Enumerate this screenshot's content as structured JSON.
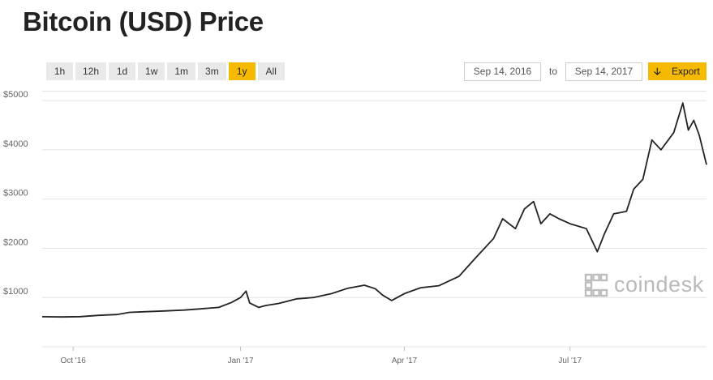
{
  "title": "Bitcoin (USD) Price",
  "ranges": [
    {
      "label": "1h",
      "active": false
    },
    {
      "label": "12h",
      "active": false
    },
    {
      "label": "1d",
      "active": false
    },
    {
      "label": "1w",
      "active": false
    },
    {
      "label": "1m",
      "active": false
    },
    {
      "label": "3m",
      "active": false
    },
    {
      "label": "1y",
      "active": true
    },
    {
      "label": "All",
      "active": false
    }
  ],
  "date_from": "Sep 14, 2016",
  "to_label": "to",
  "date_to": "Sep 14, 2017",
  "export_label": "Export",
  "export_icon": "download-arrow-icon",
  "watermark": "coindesk",
  "colors": {
    "accent": "#f5b900",
    "line": "#222222",
    "grid": "#e4e4e4"
  },
  "chart_data": {
    "type": "line",
    "title": "",
    "xlabel": "",
    "ylabel": "",
    "x_range": [
      "2016-09-14",
      "2017-09-14"
    ],
    "ylim": [
      0,
      5200
    ],
    "y_ticks": [
      1000,
      2000,
      3000,
      4000,
      5000
    ],
    "y_tick_labels": [
      "$1000",
      "$2000",
      "$3000",
      "$4000",
      "$5000"
    ],
    "x_ticks": [
      {
        "date": "2016-10-01",
        "label": "Oct '16"
      },
      {
        "date": "2017-01-01",
        "label": "Jan '17"
      },
      {
        "date": "2017-04-01",
        "label": "Apr '17"
      },
      {
        "date": "2017-07-01",
        "label": "Jul '17"
      }
    ],
    "grid": true,
    "series": [
      {
        "points": [
          [
            "2016-09-14",
            610
          ],
          [
            "2016-09-25",
            605
          ],
          [
            "2016-10-05",
            612
          ],
          [
            "2016-10-15",
            638
          ],
          [
            "2016-10-25",
            655
          ],
          [
            "2016-11-01",
            700
          ],
          [
            "2016-11-10",
            712
          ],
          [
            "2016-11-20",
            728
          ],
          [
            "2016-12-01",
            745
          ],
          [
            "2016-12-10",
            770
          ],
          [
            "2016-12-20",
            800
          ],
          [
            "2016-12-27",
            900
          ],
          [
            "2017-01-01",
            1000
          ],
          [
            "2017-01-04",
            1130
          ],
          [
            "2017-01-06",
            890
          ],
          [
            "2017-01-11",
            800
          ],
          [
            "2017-01-15",
            840
          ],
          [
            "2017-01-22",
            880
          ],
          [
            "2017-02-01",
            975
          ],
          [
            "2017-02-10",
            1000
          ],
          [
            "2017-02-20",
            1080
          ],
          [
            "2017-03-01",
            1190
          ],
          [
            "2017-03-10",
            1250
          ],
          [
            "2017-03-16",
            1180
          ],
          [
            "2017-03-20",
            1050
          ],
          [
            "2017-03-25",
            940
          ],
          [
            "2017-04-01",
            1080
          ],
          [
            "2017-04-10",
            1200
          ],
          [
            "2017-04-20",
            1240
          ],
          [
            "2017-05-01",
            1430
          ],
          [
            "2017-05-10",
            1800
          ],
          [
            "2017-05-20",
            2200
          ],
          [
            "2017-05-25",
            2600
          ],
          [
            "2017-06-01",
            2400
          ],
          [
            "2017-06-06",
            2800
          ],
          [
            "2017-06-11",
            2950
          ],
          [
            "2017-06-15",
            2500
          ],
          [
            "2017-06-20",
            2700
          ],
          [
            "2017-06-25",
            2600
          ],
          [
            "2017-07-01",
            2500
          ],
          [
            "2017-07-10",
            2400
          ],
          [
            "2017-07-16",
            1930
          ],
          [
            "2017-07-20",
            2300
          ],
          [
            "2017-07-25",
            2700
          ],
          [
            "2017-08-01",
            2750
          ],
          [
            "2017-08-05",
            3200
          ],
          [
            "2017-08-10",
            3400
          ],
          [
            "2017-08-15",
            4200
          ],
          [
            "2017-08-20",
            4000
          ],
          [
            "2017-08-27",
            4350
          ],
          [
            "2017-09-01",
            4950
          ],
          [
            "2017-09-04",
            4400
          ],
          [
            "2017-09-07",
            4600
          ],
          [
            "2017-09-10",
            4300
          ],
          [
            "2017-09-14",
            3700
          ]
        ]
      }
    ]
  }
}
